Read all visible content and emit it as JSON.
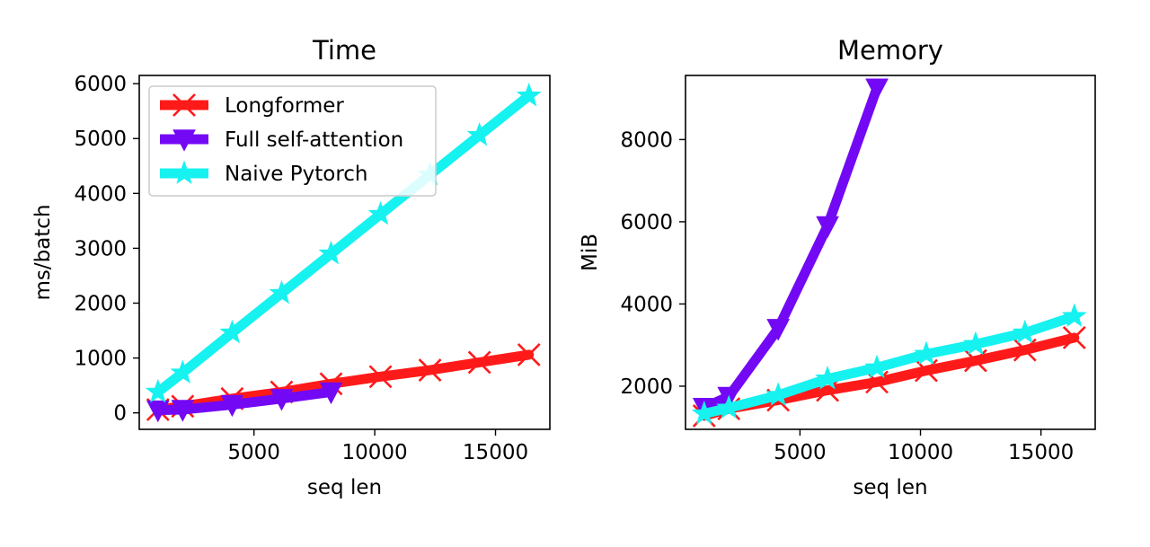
{
  "chart_data": [
    {
      "type": "line",
      "title": "Time",
      "xlabel": "seq len",
      "ylabel": "ms/batch",
      "xlim": [
        250,
        17250
      ],
      "ylim": [
        -300,
        6150
      ],
      "xticks": [
        5000,
        10000,
        15000
      ],
      "yticks": [
        0,
        1000,
        2000,
        3000,
        4000,
        5000,
        6000
      ],
      "grid": false,
      "legend": "top-left",
      "series": [
        {
          "name": "Longformer",
          "color": "#ff1a1a",
          "marker": "x",
          "x": [
            1024,
            2048,
            4096,
            6144,
            8192,
            10240,
            12288,
            14336,
            16384
          ],
          "y": [
            60,
            120,
            260,
            380,
            530,
            660,
            780,
            920,
            1060
          ]
        },
        {
          "name": "Full self-attention",
          "color": "#7308f5",
          "marker": "triangle-down",
          "x": [
            1024,
            2048,
            4096,
            6144,
            8192
          ],
          "y": [
            50,
            60,
            150,
            260,
            380
          ]
        },
        {
          "name": "Naive Pytorch",
          "color": "#16f2f0",
          "marker": "star",
          "x": [
            1024,
            2048,
            4096,
            6144,
            8192,
            10240,
            12288,
            14336,
            16384
          ],
          "y": [
            380,
            730,
            1460,
            2180,
            2900,
            3620,
            4340,
            5060,
            5780
          ]
        }
      ]
    },
    {
      "type": "line",
      "title": "Memory",
      "xlabel": "seq len",
      "ylabel": "MiB",
      "xlim": [
        250,
        17250
      ],
      "ylim": [
        950,
        9560
      ],
      "xticks": [
        5000,
        10000,
        15000
      ],
      "yticks": [
        2000,
        4000,
        6000,
        8000
      ],
      "grid": false,
      "series": [
        {
          "name": "Longformer",
          "color": "#ff1a1a",
          "marker": "x",
          "x": [
            1024,
            2048,
            4096,
            6144,
            8192,
            10240,
            12288,
            14336,
            16384
          ],
          "y": [
            1280,
            1450,
            1660,
            1900,
            2100,
            2380,
            2620,
            2880,
            3180
          ]
        },
        {
          "name": "Full self-attention",
          "color": "#7308f5",
          "marker": "triangle-down",
          "x": [
            1024,
            2048,
            4096,
            6144,
            8192
          ],
          "y": [
            1480,
            1750,
            3400,
            5900,
            9250
          ]
        },
        {
          "name": "Naive Pytorch",
          "color": "#16f2f0",
          "marker": "star",
          "x": [
            1024,
            2048,
            4096,
            6144,
            8192,
            10240,
            12288,
            14336,
            16384
          ],
          "y": [
            1330,
            1470,
            1780,
            2180,
            2450,
            2780,
            3020,
            3300,
            3700
          ]
        }
      ]
    }
  ]
}
